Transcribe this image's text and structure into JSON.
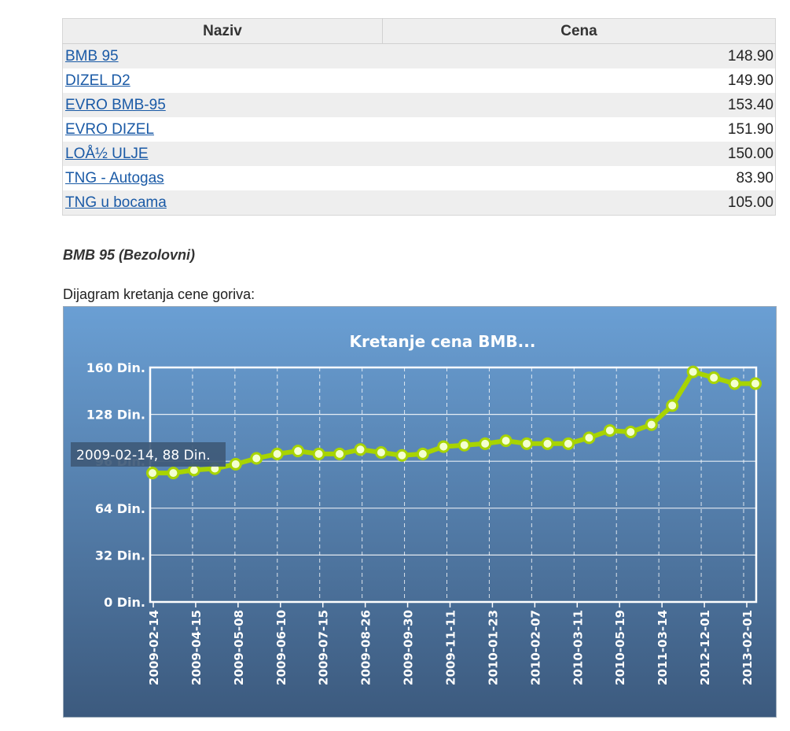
{
  "table": {
    "headers": {
      "name": "Naziv",
      "price": "Cena"
    },
    "rows": [
      {
        "name": "BMB 95",
        "price": "148.90"
      },
      {
        "name": "DIZEL D2",
        "price": "149.90"
      },
      {
        "name": "EVRO BMB-95",
        "price": "153.40"
      },
      {
        "name": "EVRO DIZEL",
        "price": "151.90"
      },
      {
        "name": "LOÅ½ ULJE",
        "price": "150.00"
      },
      {
        "name": "TNG - Autogas",
        "price": "83.90"
      },
      {
        "name": "TNG u bocama",
        "price": "105.00"
      }
    ]
  },
  "section_title": "BMB 95 (Bezolovni)",
  "chart_caption": "Dijagram kretanja cene goriva:",
  "chart_data": {
    "type": "line",
    "title": "Kretanje cena BMB...",
    "xlabel": "",
    "ylabel": "",
    "ylim": [
      0,
      160
    ],
    "y_ticks": [
      0,
      32,
      64,
      96,
      128,
      160
    ],
    "y_unit": "Din.",
    "x_tick_labels": [
      "2009-02-14",
      "2009-04-15",
      "2009-05-08",
      "2009-06-10",
      "2009-07-15",
      "2009-08-26",
      "2009-09-30",
      "2009-11-11",
      "2010-01-23",
      "2010-02-07",
      "2010-03-11",
      "2010-05-19",
      "2011-03-14",
      "2012-12-01",
      "2013-02-01"
    ],
    "series": [
      {
        "values": [
          88,
          88,
          90,
          91,
          94,
          98,
          101,
          103,
          101,
          101,
          104,
          102,
          100,
          101,
          106,
          107,
          108,
          110,
          108,
          108,
          108,
          112,
          117,
          116,
          121,
          134,
          157,
          153,
          149,
          149
        ]
      }
    ],
    "tooltip": "2009-02-14, 88 Din.",
    "grid": true,
    "legend": "none",
    "colors": {
      "line": "#a8d400",
      "bg_top": "#6a9fd4",
      "bg_bottom": "#3c5a7e",
      "grid": "#ffffff",
      "tooltip_bg": "#3f5a78"
    }
  }
}
